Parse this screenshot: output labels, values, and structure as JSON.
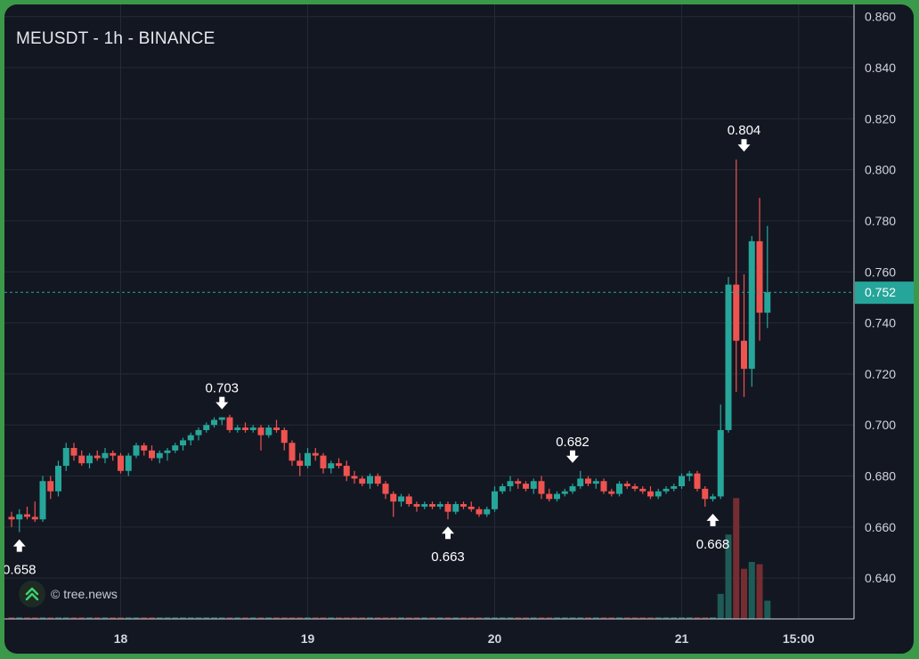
{
  "header": {
    "title": "MEUSDT - 1h - BINANCE"
  },
  "watermark": {
    "text": "© tree.news"
  },
  "colors": {
    "up": "#26a69a",
    "down": "#ef5350",
    "background": "#131722",
    "grid": "#242a36",
    "last_price_bg": "#26a69a",
    "frame": "#3a9a4a"
  },
  "chart_data": {
    "type": "candlestick",
    "symbol": "MEUSDT",
    "interval": "1h",
    "exchange": "BINANCE",
    "ylim": [
      0.624,
      0.862
    ],
    "y_ticks": [
      "0.860",
      "0.840",
      "0.820",
      "0.800",
      "0.780",
      "0.760",
      "0.740",
      "0.720",
      "0.700",
      "0.680",
      "0.660",
      "0.640"
    ],
    "x_ticks": [
      {
        "label": "18",
        "index": 14
      },
      {
        "label": "19",
        "index": 38
      },
      {
        "label": "20",
        "index": 62
      },
      {
        "label": "21",
        "index": 86
      },
      {
        "label": "15:00",
        "index": 101
      }
    ],
    "last_price": "0.752",
    "annotations": [
      {
        "label": "0.658",
        "index": 1,
        "price": 0.658,
        "type": "low"
      },
      {
        "label": "0.703",
        "index": 27,
        "price": 0.703,
        "type": "high"
      },
      {
        "label": "0.663",
        "index": 56,
        "price": 0.663,
        "type": "low"
      },
      {
        "label": "0.682",
        "index": 72,
        "price": 0.682,
        "type": "high"
      },
      {
        "label": "0.668",
        "index": 90,
        "price": 0.668,
        "type": "low"
      },
      {
        "label": "0.804",
        "index": 94,
        "price": 0.804,
        "type": "high"
      }
    ],
    "candles": [
      [
        0.664,
        0.666,
        0.66,
        0.663
      ],
      [
        0.663,
        0.667,
        0.658,
        0.665
      ],
      [
        0.665,
        0.668,
        0.663,
        0.664
      ],
      [
        0.664,
        0.67,
        0.662,
        0.663
      ],
      [
        0.663,
        0.68,
        0.662,
        0.678
      ],
      [
        0.678,
        0.68,
        0.671,
        0.674
      ],
      [
        0.674,
        0.686,
        0.672,
        0.684
      ],
      [
        0.684,
        0.693,
        0.682,
        0.691
      ],
      [
        0.691,
        0.693,
        0.686,
        0.688
      ],
      [
        0.688,
        0.69,
        0.684,
        0.685
      ],
      [
        0.685,
        0.689,
        0.683,
        0.688
      ],
      [
        0.688,
        0.69,
        0.686,
        0.687
      ],
      [
        0.687,
        0.691,
        0.685,
        0.689
      ],
      [
        0.689,
        0.69,
        0.686,
        0.688
      ],
      [
        0.688,
        0.689,
        0.681,
        0.682
      ],
      [
        0.682,
        0.689,
        0.68,
        0.688
      ],
      [
        0.688,
        0.693,
        0.687,
        0.692
      ],
      [
        0.692,
        0.693,
        0.688,
        0.69
      ],
      [
        0.69,
        0.692,
        0.686,
        0.687
      ],
      [
        0.687,
        0.69,
        0.685,
        0.689
      ],
      [
        0.689,
        0.691,
        0.686,
        0.69
      ],
      [
        0.69,
        0.693,
        0.689,
        0.692
      ],
      [
        0.692,
        0.695,
        0.69,
        0.694
      ],
      [
        0.694,
        0.697,
        0.692,
        0.696
      ],
      [
        0.696,
        0.699,
        0.694,
        0.698
      ],
      [
        0.698,
        0.701,
        0.697,
        0.7
      ],
      [
        0.7,
        0.703,
        0.699,
        0.702
      ],
      [
        0.702,
        0.703,
        0.7,
        0.703
      ],
      [
        0.703,
        0.704,
        0.697,
        0.698
      ],
      [
        0.698,
        0.7,
        0.697,
        0.699
      ],
      [
        0.699,
        0.701,
        0.697,
        0.698
      ],
      [
        0.698,
        0.7,
        0.697,
        0.699
      ],
      [
        0.699,
        0.7,
        0.69,
        0.696
      ],
      [
        0.696,
        0.7,
        0.695,
        0.699
      ],
      [
        0.699,
        0.702,
        0.697,
        0.698
      ],
      [
        0.698,
        0.699,
        0.69,
        0.693
      ],
      [
        0.693,
        0.694,
        0.684,
        0.686
      ],
      [
        0.686,
        0.689,
        0.68,
        0.684
      ],
      [
        0.684,
        0.691,
        0.683,
        0.689
      ],
      [
        0.689,
        0.691,
        0.686,
        0.688
      ],
      [
        0.688,
        0.689,
        0.681,
        0.683
      ],
      [
        0.683,
        0.686,
        0.681,
        0.685
      ],
      [
        0.685,
        0.687,
        0.683,
        0.684
      ],
      [
        0.684,
        0.686,
        0.678,
        0.68
      ],
      [
        0.68,
        0.682,
        0.677,
        0.679
      ],
      [
        0.679,
        0.68,
        0.676,
        0.677
      ],
      [
        0.677,
        0.681,
        0.675,
        0.68
      ],
      [
        0.68,
        0.681,
        0.676,
        0.677
      ],
      [
        0.677,
        0.678,
        0.671,
        0.673
      ],
      [
        0.673,
        0.674,
        0.664,
        0.67
      ],
      [
        0.67,
        0.673,
        0.668,
        0.672
      ],
      [
        0.672,
        0.673,
        0.668,
        0.669
      ],
      [
        0.669,
        0.67,
        0.666,
        0.668
      ],
      [
        0.668,
        0.67,
        0.667,
        0.669
      ],
      [
        0.669,
        0.67,
        0.667,
        0.668
      ],
      [
        0.668,
        0.67,
        0.667,
        0.669
      ],
      [
        0.669,
        0.67,
        0.663,
        0.666
      ],
      [
        0.666,
        0.67,
        0.665,
        0.669
      ],
      [
        0.669,
        0.67,
        0.667,
        0.668
      ],
      [
        0.668,
        0.67,
        0.666,
        0.667
      ],
      [
        0.667,
        0.668,
        0.664,
        0.665
      ],
      [
        0.665,
        0.668,
        0.664,
        0.667
      ],
      [
        0.667,
        0.676,
        0.666,
        0.674
      ],
      [
        0.674,
        0.677,
        0.673,
        0.676
      ],
      [
        0.676,
        0.68,
        0.674,
        0.678
      ],
      [
        0.678,
        0.679,
        0.675,
        0.677
      ],
      [
        0.677,
        0.678,
        0.674,
        0.675
      ],
      [
        0.675,
        0.679,
        0.673,
        0.678
      ],
      [
        0.678,
        0.68,
        0.671,
        0.673
      ],
      [
        0.673,
        0.675,
        0.67,
        0.671
      ],
      [
        0.671,
        0.674,
        0.67,
        0.673
      ],
      [
        0.673,
        0.675,
        0.672,
        0.674
      ],
      [
        0.674,
        0.677,
        0.673,
        0.676
      ],
      [
        0.676,
        0.682,
        0.675,
        0.679
      ],
      [
        0.679,
        0.68,
        0.676,
        0.677
      ],
      [
        0.677,
        0.679,
        0.675,
        0.678
      ],
      [
        0.678,
        0.679,
        0.673,
        0.674
      ],
      [
        0.674,
        0.675,
        0.672,
        0.673
      ],
      [
        0.673,
        0.678,
        0.672,
        0.677
      ],
      [
        0.677,
        0.678,
        0.675,
        0.676
      ],
      [
        0.676,
        0.677,
        0.674,
        0.675
      ],
      [
        0.675,
        0.676,
        0.673,
        0.674
      ],
      [
        0.674,
        0.676,
        0.671,
        0.672
      ],
      [
        0.672,
        0.675,
        0.671,
        0.674
      ],
      [
        0.674,
        0.676,
        0.673,
        0.675
      ],
      [
        0.675,
        0.677,
        0.674,
        0.676
      ],
      [
        0.676,
        0.681,
        0.675,
        0.68
      ],
      [
        0.68,
        0.682,
        0.678,
        0.681
      ],
      [
        0.681,
        0.682,
        0.674,
        0.675
      ],
      [
        0.675,
        0.676,
        0.668,
        0.671
      ],
      [
        0.671,
        0.673,
        0.67,
        0.672
      ],
      [
        0.672,
        0.708,
        0.671,
        0.698
      ],
      [
        0.698,
        0.758,
        0.697,
        0.755
      ],
      [
        0.755,
        0.804,
        0.713,
        0.733
      ],
      [
        0.733,
        0.759,
        0.711,
        0.722
      ],
      [
        0.722,
        0.774,
        0.715,
        0.772
      ],
      [
        0.772,
        0.789,
        0.733,
        0.744
      ],
      [
        0.744,
        0.778,
        0.738,
        0.752
      ]
    ],
    "volumes": [
      0.006,
      0.008,
      0.006,
      0.006,
      0.007,
      0.006,
      0.006,
      0.007,
      0.006,
      0.006,
      0.006,
      0.006,
      0.006,
      0.006,
      0.006,
      0.006,
      0.006,
      0.006,
      0.006,
      0.006,
      0.006,
      0.006,
      0.006,
      0.006,
      0.006,
      0.006,
      0.006,
      0.006,
      0.006,
      0.006,
      0.006,
      0.006,
      0.006,
      0.006,
      0.006,
      0.006,
      0.006,
      0.006,
      0.006,
      0.006,
      0.006,
      0.006,
      0.007,
      0.006,
      0.008,
      0.006,
      0.006,
      0.006,
      0.006,
      0.006,
      0.006,
      0.006,
      0.006,
      0.006,
      0.006,
      0.006,
      0.006,
      0.006,
      0.006,
      0.006,
      0.006,
      0.006,
      0.006,
      0.006,
      0.006,
      0.006,
      0.006,
      0.006,
      0.006,
      0.006,
      0.006,
      0.006,
      0.006,
      0.006,
      0.006,
      0.006,
      0.006,
      0.006,
      0.006,
      0.006,
      0.006,
      0.006,
      0.006,
      0.006,
      0.006,
      0.006,
      0.006,
      0.008,
      0.007,
      0.006,
      0.007,
      0.11,
      0.37,
      0.53,
      0.22,
      0.25,
      0.24,
      0.08
    ]
  }
}
